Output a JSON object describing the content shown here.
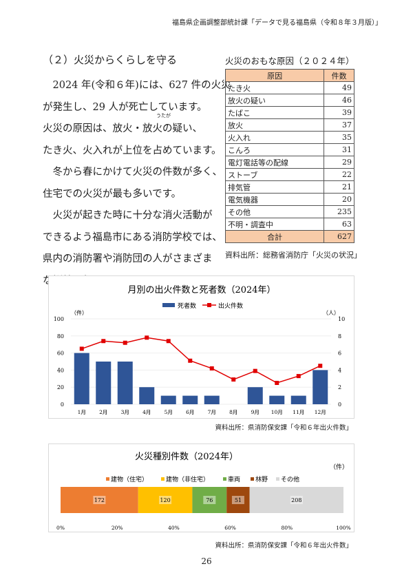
{
  "header": "福島県企画調整部統計課「データで見る福島県（令和８年３月版）」",
  "section_title": "（２）火災からくらしを守る",
  "paragraphs": [
    "　2024 年(令和６年)には、627 件の火災",
    "が発生し、29 人が死亡しています。",
    "火災の原因は、放火・放火の疑い、",
    "たき火、火入れが上位を占めています。",
    "　冬から春にかけて火災の件数が多く、",
    "住宅での火災が最も多いです。",
    "　火災が起きた時に十分な消火活動が",
    "できるよう福島市にある消防学校では、",
    "県内の消防署や消防団の人がさまざま",
    "な訓練を行っています。"
  ],
  "ruby": "うたが",
  "table": {
    "title": "火災のおもな原因（２０２４年）",
    "headers": [
      "原因",
      "件数"
    ],
    "rows": [
      [
        "たき火",
        "49"
      ],
      [
        "放火の疑い",
        "46"
      ],
      [
        "たばこ",
        "39"
      ],
      [
        "放火",
        "37"
      ],
      [
        "火入れ",
        "35"
      ],
      [
        "こんろ",
        "31"
      ],
      [
        "電灯電話等の配線",
        "29"
      ],
      [
        "ストーブ",
        "22"
      ],
      [
        "排気管",
        "21"
      ],
      [
        "電気機器",
        "20"
      ],
      [
        "その他",
        "235"
      ],
      [
        "不明・調査中",
        "63"
      ]
    ],
    "total": [
      "合計",
      "627"
    ],
    "source": "資料出所：総務省消防庁「火災の状況」"
  },
  "chart_data": [
    {
      "type": "bar+line",
      "title": "月別の出火件数と死者数（2024年）",
      "categories": [
        "1月",
        "2月",
        "3月",
        "4月",
        "5月",
        "6月",
        "7月",
        "8月",
        "9月",
        "10月",
        "11月",
        "12月"
      ],
      "series": [
        {
          "name": "死者数",
          "type": "bar",
          "axis": "right",
          "color": "#2f5597",
          "values": [
            6,
            5,
            5,
            2,
            1,
            1,
            1,
            0,
            2,
            1,
            1,
            4
          ]
        },
        {
          "name": "出火件数",
          "type": "line",
          "axis": "left",
          "color": "#e00000",
          "values": [
            65,
            74,
            72,
            78,
            74,
            51,
            42,
            29,
            39,
            25,
            33,
            45
          ]
        }
      ],
      "ylabel_left": "（件）",
      "ylabel_right": "（人）",
      "ylim_left": [
        0,
        100
      ],
      "ylim_right": [
        0,
        10
      ],
      "yticks_left": [
        "0",
        "20",
        "40",
        "60",
        "80",
        "100"
      ],
      "yticks_right": [
        "0",
        "2",
        "4",
        "6",
        "8",
        "10"
      ],
      "legend": "top",
      "grid": true,
      "source": "資料出所：県消防保安課「令和６年出火件数」"
    },
    {
      "type": "stacked-bar-100",
      "title": "火災種別件数（2024年）",
      "unit": "（件）",
      "series": [
        {
          "name": "建物（住宅）",
          "value": 172,
          "color": "#ed7d31"
        },
        {
          "name": "建物（非住宅）",
          "value": 120,
          "color": "#ffc000"
        },
        {
          "name": "車両",
          "value": 76,
          "color": "#70ad47"
        },
        {
          "name": "林野",
          "value": 51,
          "color": "#9e480e"
        },
        {
          "name": "その他",
          "value": 208,
          "color": "#d9d9d9"
        }
      ],
      "xticks": [
        "0%",
        "20%",
        "40%",
        "60%",
        "80%",
        "100%"
      ],
      "legend": "top",
      "source": "資料出所：県消防保安課「令和６年出火件数」"
    }
  ],
  "page_number": "26"
}
